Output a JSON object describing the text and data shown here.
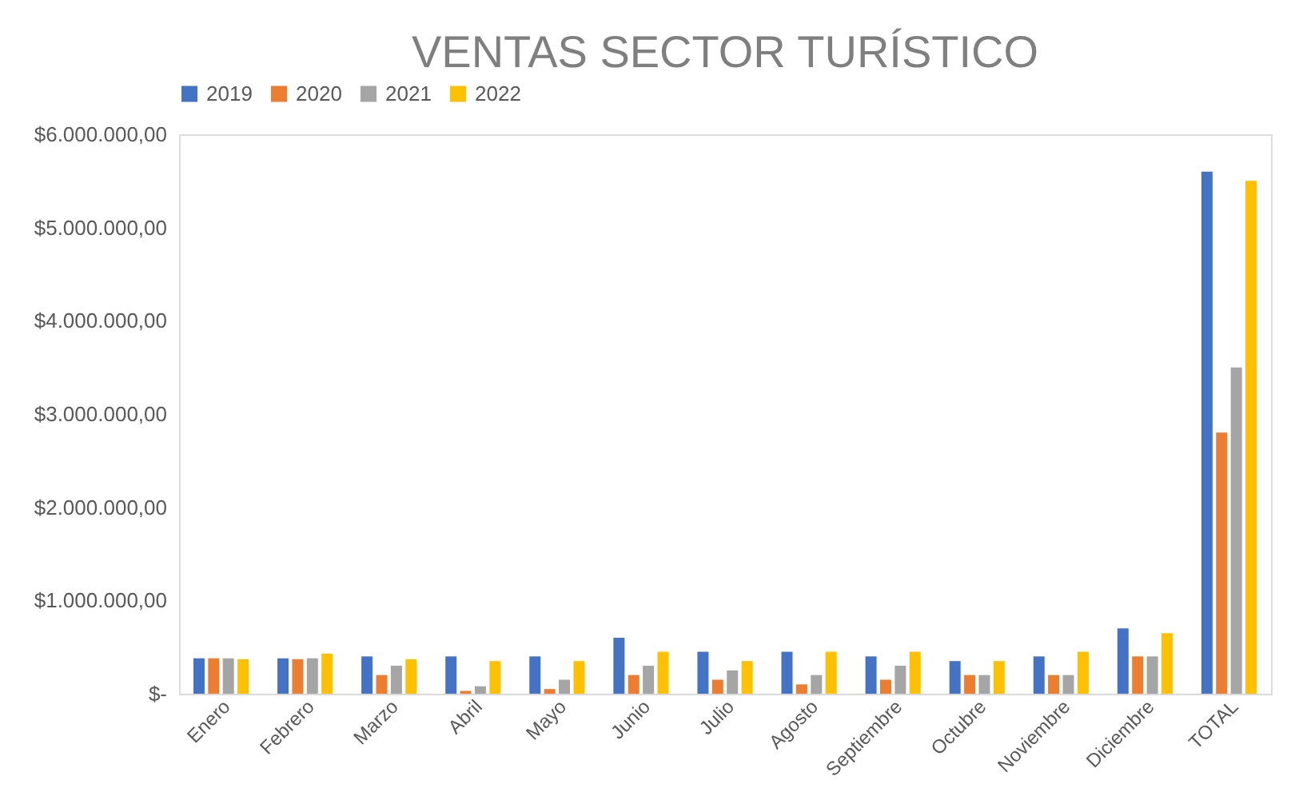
{
  "chart_data": {
    "type": "bar",
    "title": "VENTAS SECTOR TURÍSTICO",
    "categories": [
      "Enero",
      "Febrero",
      "Marzo",
      "Abril",
      "Mayo",
      "Junio",
      "Julio",
      "Agosto",
      "Septiembre",
      "Octubre",
      "Noviembre",
      "Diciembre",
      "TOTAL"
    ],
    "series": [
      {
        "name": "2019",
        "color": "#4472c4",
        "values": [
          380000,
          380000,
          400000,
          400000,
          400000,
          600000,
          450000,
          450000,
          400000,
          350000,
          400000,
          700000,
          5600000
        ]
      },
      {
        "name": "2020",
        "color": "#ed7d31",
        "values": [
          380000,
          370000,
          200000,
          30000,
          50000,
          200000,
          150000,
          100000,
          150000,
          200000,
          200000,
          400000,
          2800000
        ]
      },
      {
        "name": "2021",
        "color": "#a5a5a5",
        "values": [
          380000,
          380000,
          300000,
          80000,
          150000,
          300000,
          250000,
          200000,
          300000,
          200000,
          200000,
          400000,
          3500000
        ]
      },
      {
        "name": "2022",
        "color": "#ffc000",
        "values": [
          370000,
          430000,
          370000,
          350000,
          350000,
          450000,
          350000,
          450000,
          450000,
          350000,
          450000,
          650000,
          5500000
        ]
      }
    ],
    "ylim": [
      0,
      6000000
    ],
    "yticks": [
      {
        "value": 0,
        "label": "$-"
      },
      {
        "value": 1000000,
        "label": "$1.000.000,00"
      },
      {
        "value": 2000000,
        "label": "$2.000.000,00"
      },
      {
        "value": 3000000,
        "label": "$3.000.000,00"
      },
      {
        "value": 4000000,
        "label": "$4.000.000,00"
      },
      {
        "value": 5000000,
        "label": "$5.000.000,00"
      },
      {
        "value": 6000000,
        "label": "$6.000.000,00"
      }
    ],
    "grid": false,
    "legend": "top"
  }
}
